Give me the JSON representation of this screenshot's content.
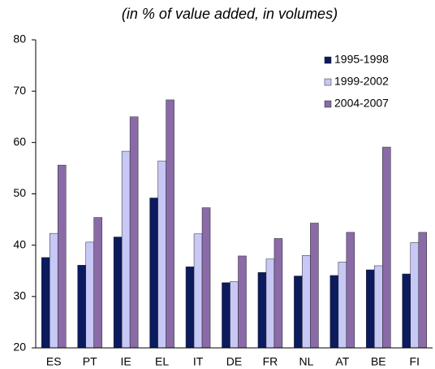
{
  "chart_data": {
    "type": "bar",
    "title": "(in % of value added, in volumes)",
    "categories": [
      "ES",
      "PT",
      "IE",
      "EL",
      "IT",
      "DE",
      "FR",
      "NL",
      "AT",
      "BE",
      "FI"
    ],
    "series": [
      {
        "name": "1995-1998",
        "color": "#0b1b5e",
        "values": [
          37.6,
          36.1,
          41.6,
          49.2,
          35.8,
          32.7,
          34.7,
          34.0,
          34.1,
          35.2,
          34.4
        ]
      },
      {
        "name": "1999-2002",
        "color": "#c8c8f6",
        "values": [
          42.3,
          40.6,
          58.3,
          56.4,
          42.2,
          32.9,
          37.3,
          38.0,
          36.7,
          36.0,
          40.5
        ]
      },
      {
        "name": "2004-2007",
        "color": "#8a6ba8",
        "values": [
          55.6,
          45.4,
          65.0,
          68.3,
          47.3,
          37.9,
          41.3,
          44.3,
          42.5,
          59.1,
          42.5
        ]
      }
    ],
    "ylim": [
      20,
      80
    ],
    "yticks": [
      20,
      30,
      40,
      50,
      60,
      70,
      80
    ],
    "legend": "upper-right"
  }
}
